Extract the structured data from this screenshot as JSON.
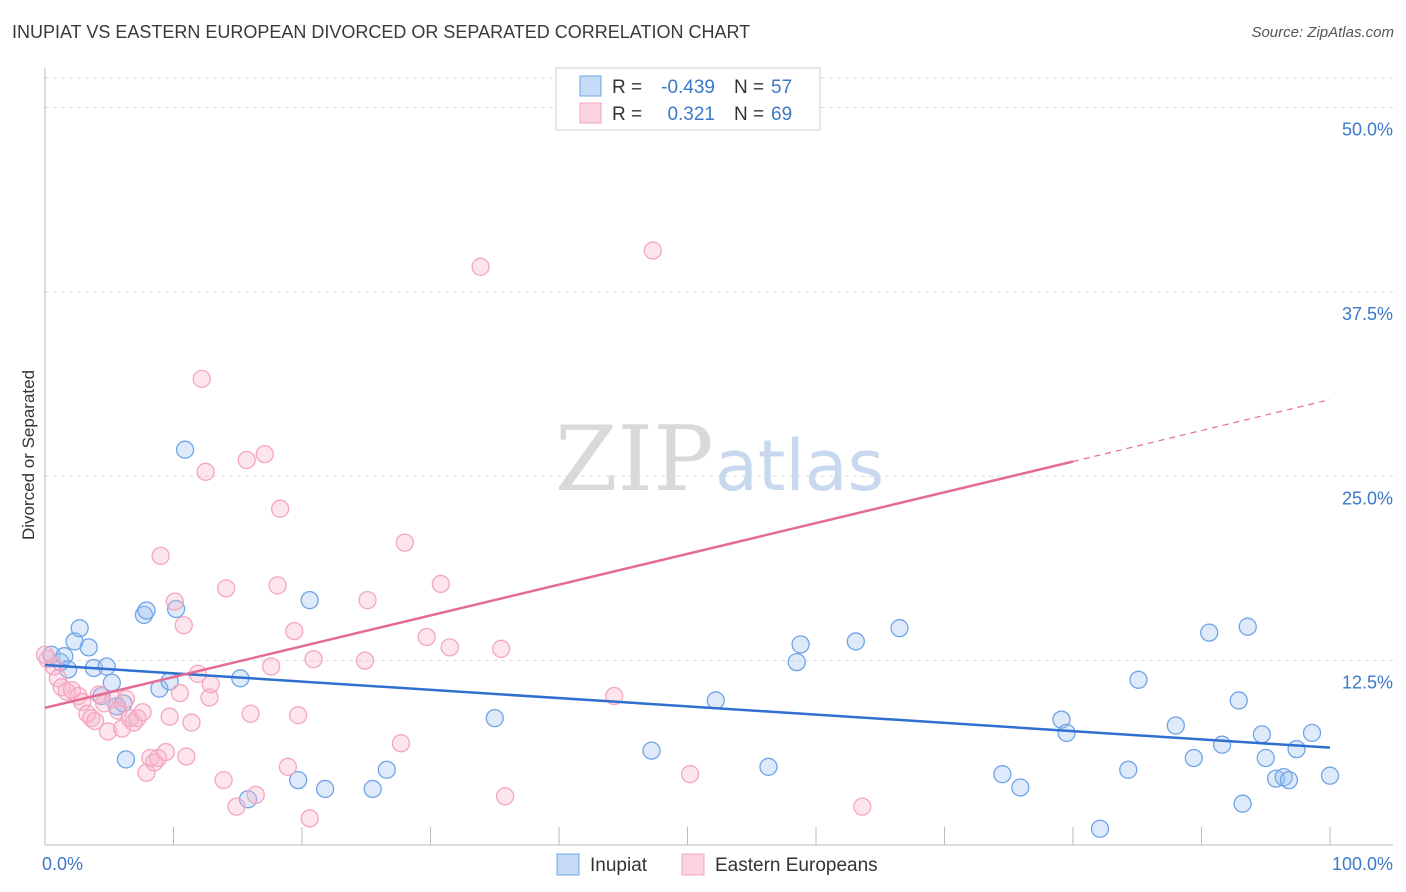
{
  "header": {
    "title": "INUPIAT VS EASTERN EUROPEAN DIVORCED OR SEPARATED CORRELATION CHART",
    "source": "Source: ZipAtlas.com"
  },
  "watermark": {
    "zip": "ZIP",
    "atlas": "atlas"
  },
  "legend_box": {
    "rows": [
      {
        "r_label": "R =",
        "r_value": "-0.439",
        "n_label": "N =",
        "n_value": "57"
      },
      {
        "r_label": "R =",
        "r_value": "0.321",
        "n_label": "N =",
        "n_value": "69"
      }
    ]
  },
  "chart_data": {
    "type": "scatter",
    "title": "INUPIAT VS EASTERN EUROPEAN DIVORCED OR SEPARATED CORRELATION CHART",
    "xlabel": "",
    "ylabel": "Divorced or Separated",
    "xlim": [
      0,
      100
    ],
    "ylim": [
      0,
      52
    ],
    "x_tick_labels": [
      "0.0%",
      "100.0%"
    ],
    "y_ticks": [
      12.5,
      25.0,
      37.5,
      50.0
    ],
    "y_tick_labels": [
      "12.5%",
      "25.0%",
      "37.5%",
      "50.0%"
    ],
    "grid": true,
    "legend_position": "top-center",
    "series": [
      {
        "name": "Inupiat",
        "color": "#6fa4e8",
        "line_color": "#2f6fcf",
        "r": -0.439,
        "n": 57,
        "trend": {
          "x": [
            0,
            100
          ],
          "y": [
            12.2,
            6.6
          ]
        },
        "points": [
          [
            0.5,
            12.9
          ],
          [
            1.2,
            12.4
          ],
          [
            1.5,
            12.8
          ],
          [
            1.8,
            11.9
          ],
          [
            2.3,
            13.8
          ],
          [
            2.7,
            14.7
          ],
          [
            3.4,
            13.4
          ],
          [
            3.8,
            12.0
          ],
          [
            4.4,
            10.1
          ],
          [
            4.8,
            12.1
          ],
          [
            5.2,
            11.0
          ],
          [
            5.6,
            9.4
          ],
          [
            6.1,
            9.6
          ],
          [
            6.3,
            5.8
          ],
          [
            7.7,
            15.6
          ],
          [
            7.9,
            15.9
          ],
          [
            8.9,
            10.6
          ],
          [
            9.7,
            11.1
          ],
          [
            10.2,
            16.0
          ],
          [
            10.9,
            26.8
          ],
          [
            15.8,
            3.1
          ],
          [
            15.2,
            11.3
          ],
          [
            19.7,
            4.4
          ],
          [
            20.6,
            16.6
          ],
          [
            21.8,
            3.8
          ],
          [
            25.5,
            3.8
          ],
          [
            26.6,
            5.1
          ],
          [
            35.0,
            8.6
          ],
          [
            47.2,
            6.4
          ],
          [
            52.2,
            9.8
          ],
          [
            56.3,
            5.3
          ],
          [
            58.5,
            12.4
          ],
          [
            58.8,
            13.6
          ],
          [
            63.1,
            13.8
          ],
          [
            66.5,
            14.7
          ],
          [
            74.5,
            4.8
          ],
          [
            75.9,
            3.9
          ],
          [
            79.1,
            8.5
          ],
          [
            79.5,
            7.6
          ],
          [
            82.1,
            1.1
          ],
          [
            84.3,
            5.1
          ],
          [
            85.1,
            11.2
          ],
          [
            88.0,
            8.1
          ],
          [
            89.4,
            5.9
          ],
          [
            90.6,
            14.4
          ],
          [
            91.6,
            6.8
          ],
          [
            92.9,
            9.8
          ],
          [
            93.2,
            2.8
          ],
          [
            93.6,
            14.8
          ],
          [
            94.7,
            7.5
          ],
          [
            95.0,
            5.9
          ],
          [
            95.8,
            4.5
          ],
          [
            96.4,
            4.6
          ],
          [
            96.8,
            4.4
          ],
          [
            97.4,
            6.5
          ],
          [
            98.6,
            7.6
          ],
          [
            100.0,
            4.7
          ]
        ]
      },
      {
        "name": "Eastern Europeans",
        "color": "#f4a6bf",
        "line_color": "#e46c93",
        "r": 0.321,
        "n": 69,
        "trend": {
          "x": [
            0,
            80
          ],
          "y": [
            9.3,
            26.0
          ]
        },
        "trend_dashed": {
          "x": [
            80,
            100
          ],
          "y": [
            26.0,
            30.2
          ]
        },
        "points": [
          [
            0.2,
            12.6
          ],
          [
            0.7,
            12.1
          ],
          [
            1.0,
            11.3
          ],
          [
            1.3,
            10.7
          ],
          [
            1.7,
            10.4
          ],
          [
            2.1,
            10.5
          ],
          [
            2.6,
            10.1
          ],
          [
            2.9,
            9.7
          ],
          [
            3.3,
            8.9
          ],
          [
            3.6,
            8.6
          ],
          [
            3.9,
            8.4
          ],
          [
            4.2,
            10.2
          ],
          [
            4.6,
            9.6
          ],
          [
            4.9,
            7.7
          ],
          [
            5.3,
            9.9
          ],
          [
            5.7,
            9.1
          ],
          [
            6.0,
            7.9
          ],
          [
            6.3,
            9.9
          ],
          [
            6.6,
            8.6
          ],
          [
            6.9,
            8.3
          ],
          [
            7.2,
            8.6
          ],
          [
            7.6,
            9.0
          ],
          [
            7.9,
            4.9
          ],
          [
            8.2,
            5.9
          ],
          [
            8.5,
            5.6
          ],
          [
            8.8,
            5.9
          ],
          [
            9.0,
            19.6
          ],
          [
            9.4,
            6.3
          ],
          [
            9.7,
            8.7
          ],
          [
            10.1,
            16.5
          ],
          [
            10.5,
            10.3
          ],
          [
            10.8,
            14.9
          ],
          [
            11.0,
            6.0
          ],
          [
            11.4,
            8.3
          ],
          [
            11.9,
            11.6
          ],
          [
            12.2,
            31.6
          ],
          [
            12.5,
            25.3
          ],
          [
            12.8,
            10.0
          ],
          [
            12.9,
            10.9
          ],
          [
            13.9,
            4.4
          ],
          [
            14.1,
            17.4
          ],
          [
            14.9,
            2.6
          ],
          [
            15.7,
            26.1
          ],
          [
            16.0,
            8.9
          ],
          [
            16.4,
            3.4
          ],
          [
            17.1,
            26.5
          ],
          [
            17.6,
            12.1
          ],
          [
            18.1,
            17.6
          ],
          [
            18.3,
            22.8
          ],
          [
            18.9,
            5.3
          ],
          [
            19.4,
            14.5
          ],
          [
            19.7,
            8.8
          ],
          [
            20.6,
            1.8
          ],
          [
            20.9,
            12.6
          ],
          [
            24.9,
            12.5
          ],
          [
            25.1,
            16.6
          ],
          [
            27.7,
            6.9
          ],
          [
            28.0,
            20.5
          ],
          [
            29.7,
            14.1
          ],
          [
            30.8,
            17.7
          ],
          [
            31.5,
            13.4
          ],
          [
            33.9,
            39.2
          ],
          [
            35.5,
            13.3
          ],
          [
            35.8,
            3.3
          ],
          [
            44.3,
            10.1
          ],
          [
            47.3,
            40.3
          ],
          [
            50.2,
            4.8
          ],
          [
            63.6,
            2.6
          ],
          [
            0.0,
            12.9
          ]
        ]
      }
    ]
  }
}
